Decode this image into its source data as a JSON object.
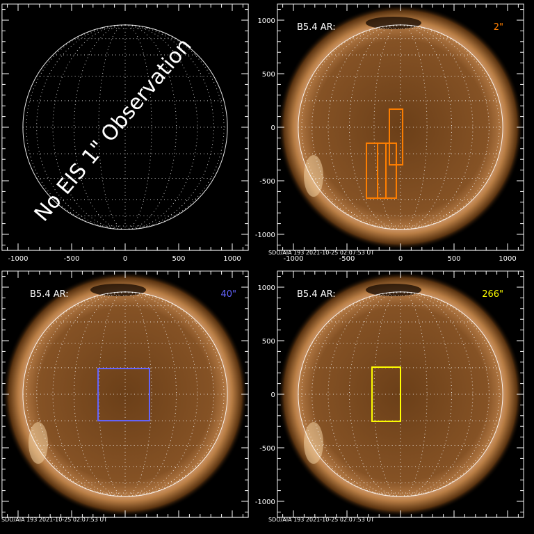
{
  "chart_data": [
    {
      "type": "image",
      "panel": "top-left",
      "xlim": [
        -1150,
        1150
      ],
      "ylim": [
        -1150,
        1150
      ],
      "xticks": [
        -1000,
        -500,
        0,
        500,
        1000
      ],
      "yticks": [],
      "show_xticklabels": true,
      "show_yticklabels": false,
      "image": false,
      "annotation": "No EIS 1\" Observation",
      "label": "",
      "resolution": "",
      "color": "#ffffff",
      "boxes": [],
      "footer": ""
    },
    {
      "type": "image",
      "panel": "top-right",
      "xlim": [
        -1150,
        1150
      ],
      "ylim": [
        -1150,
        1150
      ],
      "xticks": [
        -1000,
        -500,
        0,
        500,
        1000
      ],
      "yticks": [
        1000,
        500,
        0,
        -500,
        -1000
      ],
      "show_xticklabels": true,
      "show_yticklabels": true,
      "image": true,
      "annotation": "",
      "label": "B5.4 AR:",
      "resolution": "2\"",
      "color": "#ff7f00",
      "boxes": [
        {
          "x": [
            -318,
            -214
          ],
          "y": [
            -662,
            -149
          ]
        },
        {
          "x": [
            -214,
            -136
          ],
          "y": [
            -662,
            -149
          ]
        },
        {
          "x": [
            -136,
            -39
          ],
          "y": [
            -662,
            -149
          ]
        },
        {
          "x": [
            -104,
            20
          ],
          "y": [
            -351,
            169
          ]
        }
      ],
      "footer": "SDO/AIA 193   2021-10-25 02:07:53 UT"
    },
    {
      "type": "image",
      "panel": "bottom-left",
      "xlim": [
        -1150,
        1150
      ],
      "ylim": [
        -1150,
        1150
      ],
      "xticks": [
        -1000,
        -500,
        0,
        500,
        1000
      ],
      "yticks": [],
      "show_xticklabels": false,
      "show_yticklabels": false,
      "image": true,
      "annotation": "",
      "label": "B5.4 AR:",
      "resolution": "40\"",
      "color": "#6464ff",
      "boxes": [
        {
          "x": [
            -253,
            227
          ],
          "y": [
            -247,
            240
          ]
        }
      ],
      "footer": "SDO/AIA 193   2021-10-25 02:07:53 UT"
    },
    {
      "type": "image",
      "panel": "bottom-right",
      "xlim": [
        -1150,
        1150
      ],
      "ylim": [
        -1150,
        1150
      ],
      "xticks": [
        -1000,
        -500,
        0,
        500,
        1000
      ],
      "yticks": [
        1000,
        500,
        0,
        -500,
        -1000
      ],
      "show_xticklabels": false,
      "show_yticklabels": true,
      "image": true,
      "annotation": "",
      "label": "B5.4 AR:",
      "resolution": "266\"",
      "color": "#ffff00",
      "boxes": [
        {
          "x": [
            -266,
            0
          ],
          "y": [
            -253,
            253
          ]
        }
      ],
      "footer": "SDO/AIA 193   2021-10-25 02:07:53 UT"
    }
  ]
}
